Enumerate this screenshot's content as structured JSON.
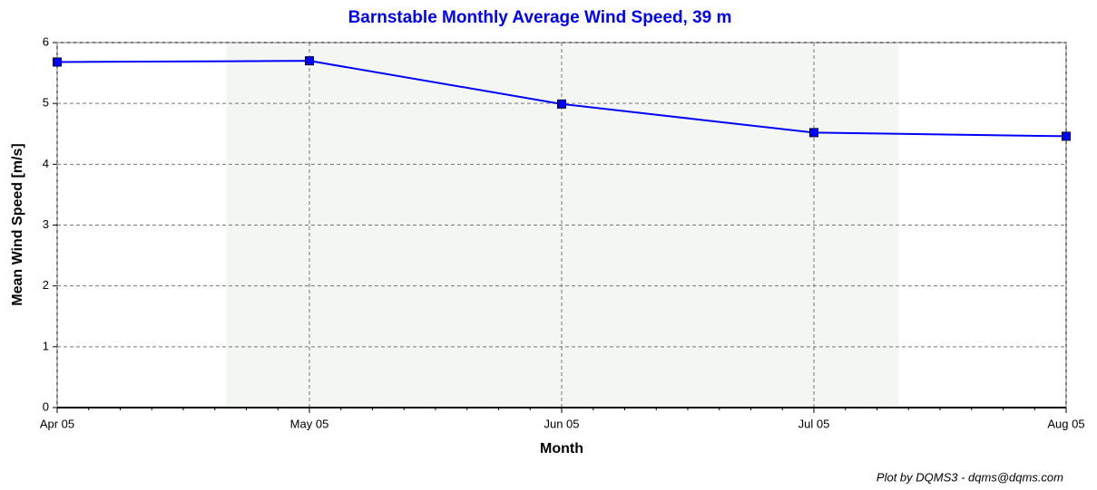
{
  "chart_data": {
    "type": "line",
    "title": "Barnstable Monthly Average Wind Speed, 39 m",
    "x_label": "Month",
    "y_label": "Mean Wind Speed [m/s]",
    "footer": "Plot by DQMS3 - dqms@dqms.com",
    "categories": [
      "Apr 05",
      "May 05",
      "Jun 05",
      "Jul 05",
      "Aug 05"
    ],
    "series": [
      {
        "name": "Mean Wind Speed",
        "color": "#0000ff",
        "values": [
          5.68,
          5.7,
          4.99,
          4.52,
          4.46
        ]
      }
    ],
    "ylim": [
      0,
      6
    ],
    "yticks": [
      0,
      1,
      2,
      3,
      4,
      5,
      6
    ],
    "grid": true
  }
}
